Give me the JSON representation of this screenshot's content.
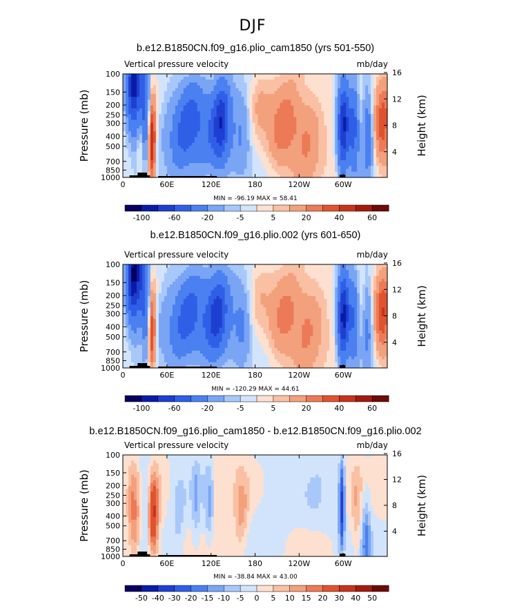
{
  "figure_title": "DJF",
  "chart_data": [
    {
      "type": "heatmap",
      "title": "b.e12.B1850CN.f09_g16.plio_cam1850 (yrs 501-550)",
      "variable": "Vertical pressure velocity",
      "units": "mb/day",
      "xlabel": "",
      "ylabel": "Pressure (mb)",
      "ylabel_right": "Height (km)",
      "x_ticks": [
        "0",
        "60E",
        "120E",
        "180",
        "120W",
        "60W"
      ],
      "y_ticks": [
        "100",
        "150",
        "200",
        "250",
        "300",
        "400",
        "500",
        "700",
        "850",
        "1000"
      ],
      "y_ticks_right": [
        "16",
        "12",
        "8",
        "4"
      ],
      "xlim": [
        0,
        360
      ],
      "ylim": [
        1000,
        100
      ],
      "stats": "MIN = -96.19   MAX =  58.41",
      "colorbar_labels": [
        "-100",
        "-60",
        "-20",
        "-5",
        "5",
        "20",
        "40",
        "60"
      ],
      "colorbar_levels": [
        -100,
        -80,
        -60,
        -40,
        -20,
        -10,
        -5,
        0,
        5,
        10,
        20,
        30,
        40,
        50,
        60
      ],
      "colorbar_colors": [
        "#08005e",
        "#0a1ba8",
        "#1e3fd0",
        "#2f5fe6",
        "#4a80f0",
        "#7aa5f5",
        "#a8c8fa",
        "#d2e4fb",
        "#fde0cf",
        "#f9c0a4",
        "#f3a07c",
        "#ec7a57",
        "#e0532f",
        "#c8321d",
        "#a31b10",
        "#6e0a06"
      ]
    },
    {
      "type": "heatmap",
      "title": "b.e12.B1850CN.f09_g16.plio.002 (yrs 601-650)",
      "variable": "Vertical pressure velocity",
      "units": "mb/day",
      "xlabel": "",
      "ylabel": "Pressure (mb)",
      "ylabel_right": "Height (km)",
      "x_ticks": [
        "0",
        "60E",
        "120E",
        "180",
        "120W",
        "60W"
      ],
      "y_ticks": [
        "100",
        "150",
        "200",
        "250",
        "300",
        "400",
        "500",
        "700",
        "850",
        "1000"
      ],
      "y_ticks_right": [
        "16",
        "12",
        "8",
        "4"
      ],
      "xlim": [
        0,
        360
      ],
      "ylim": [
        1000,
        100
      ],
      "stats": "MIN = -120.29   MAX =  44.61",
      "colorbar_labels": [
        "-100",
        "-60",
        "-20",
        "-5",
        "5",
        "20",
        "40",
        "60"
      ],
      "colorbar_levels": [
        -100,
        -80,
        -60,
        -40,
        -20,
        -10,
        -5,
        0,
        5,
        10,
        20,
        30,
        40,
        50,
        60
      ],
      "colorbar_colors": [
        "#08005e",
        "#0a1ba8",
        "#1e3fd0",
        "#2f5fe6",
        "#4a80f0",
        "#7aa5f5",
        "#a8c8fa",
        "#d2e4fb",
        "#fde0cf",
        "#f9c0a4",
        "#f3a07c",
        "#ec7a57",
        "#e0532f",
        "#c8321d",
        "#a31b10",
        "#6e0a06"
      ]
    },
    {
      "type": "heatmap",
      "title": "b.e12.B1850CN.f09_g16.plio_cam1850 - b.e12.B1850CN.f09_g16.plio.002",
      "variable": "Vertical pressure velocity",
      "units": "mb/day",
      "xlabel": "",
      "ylabel": "Pressure (mb)",
      "ylabel_right": "Height (km)",
      "x_ticks": [
        "0",
        "60E",
        "120E",
        "180",
        "120W",
        "60W"
      ],
      "y_ticks": [
        "100",
        "150",
        "200",
        "250",
        "300",
        "400",
        "500",
        "700",
        "850",
        "1000"
      ],
      "y_ticks_right": [
        "16",
        "12",
        "8",
        "4"
      ],
      "xlim": [
        0,
        360
      ],
      "ylim": [
        1000,
        100
      ],
      "stats": "MIN = -38.84   MAX =  43.00",
      "colorbar_labels": [
        "-50",
        "-40",
        "-30",
        "-20",
        "-15",
        "-10",
        "-5",
        "0",
        "5",
        "10",
        "15",
        "20",
        "30",
        "40",
        "50"
      ],
      "colorbar_levels": [
        -50,
        -40,
        -30,
        -20,
        -15,
        -10,
        -5,
        0,
        5,
        10,
        15,
        20,
        30,
        40,
        50
      ],
      "colorbar_colors": [
        "#08005e",
        "#0a1ba8",
        "#1e3fd0",
        "#2f5fe6",
        "#4a80f0",
        "#7aa5f5",
        "#a8c8fa",
        "#d2e4fb",
        "#fde0cf",
        "#f9c0a4",
        "#f3a07c",
        "#ec7a57",
        "#e0532f",
        "#c8321d",
        "#a31b10",
        "#6e0a06"
      ]
    }
  ]
}
